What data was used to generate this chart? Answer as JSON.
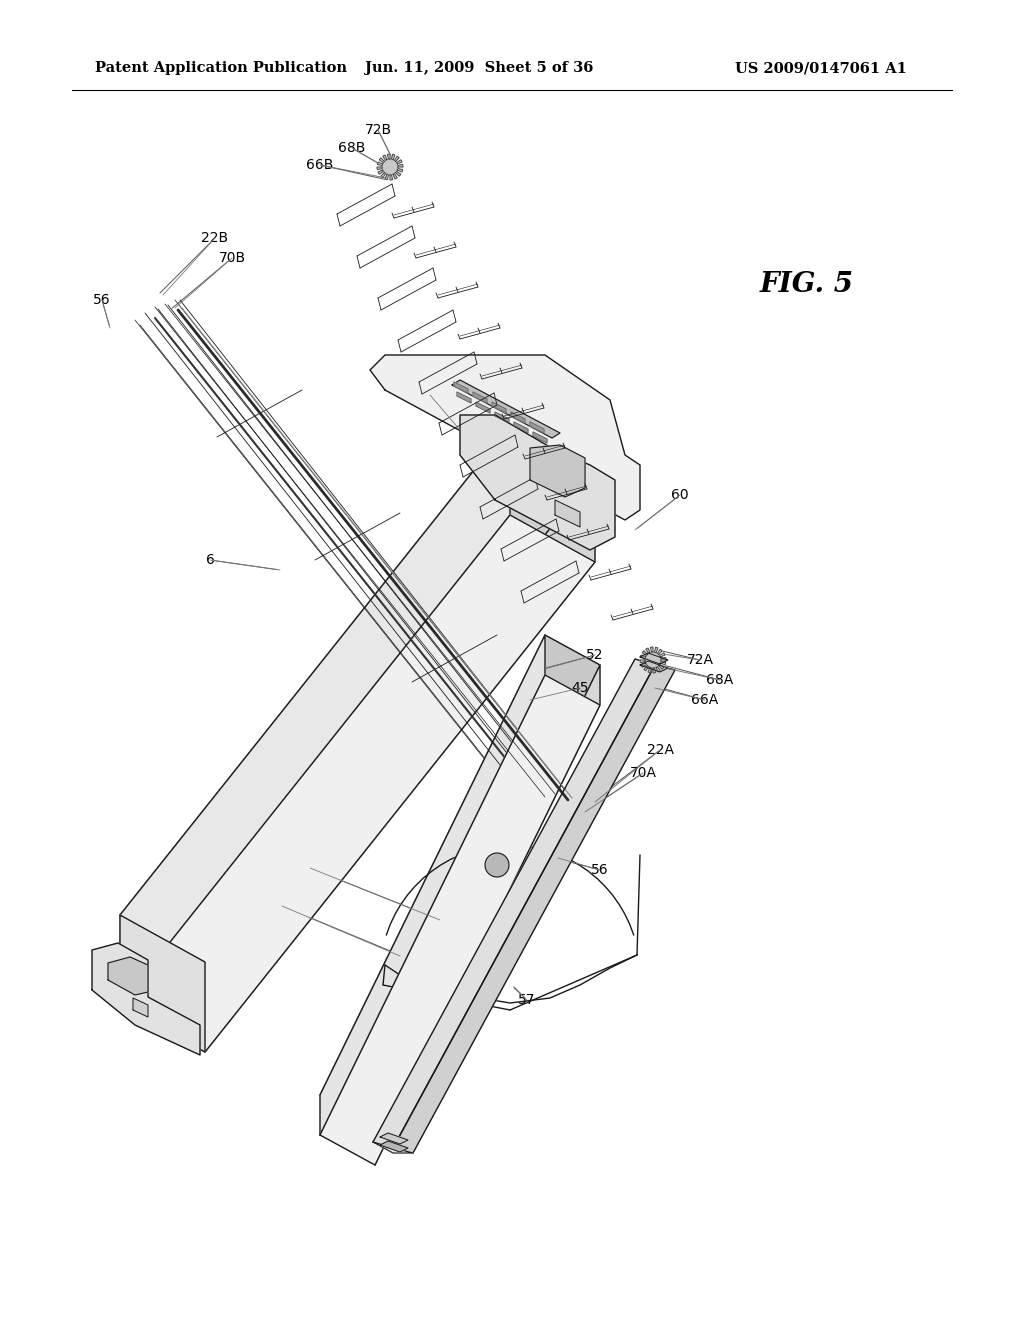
{
  "bg_color": "#ffffff",
  "title_left": "Patent Application Publication",
  "title_mid": "Jun. 11, 2009  Sheet 5 of 36",
  "title_right": "US 2009/0147061 A1",
  "fig_label": "FIG. 5",
  "line_color": "#1a1a1a",
  "text_color": "#000000",
  "header_fontsize": 10.5,
  "label_fontsize": 10,
  "fig_label_fontsize": 20,
  "cartridge_color": "#f2f2f2",
  "cartridge_side_color": "#d8d8d8",
  "cartridge_top_color": "#e8e8e8",
  "rail_color": "#efefef",
  "rail_side_color": "#d0d0d0",
  "tube_color": "#e8e8e8",
  "tube_ring_color": "#c8c8c8"
}
